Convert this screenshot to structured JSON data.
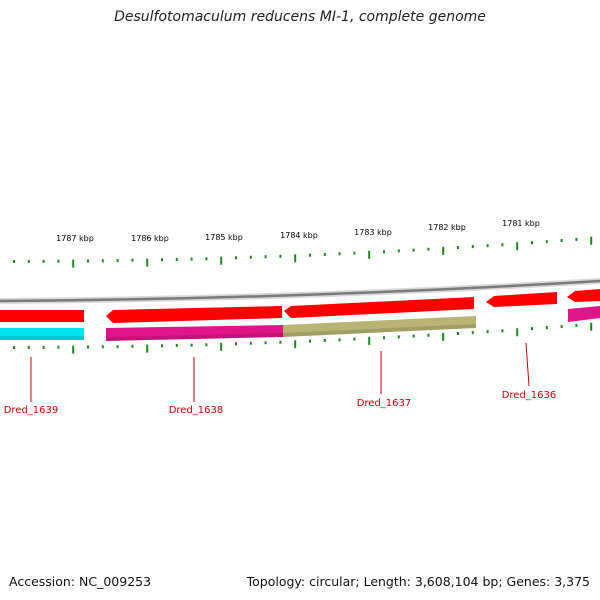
{
  "title": "Desulfotomaculum reducens MI-1, complete genome",
  "footer": {
    "accession": "Accession: NC_009253",
    "summary": "Topology: circular; Length: 3,608,104 bp; Genes: 3,375"
  },
  "scale": {
    "ticks": [
      {
        "kbp": 1787,
        "label": "1787 kbp"
      },
      {
        "kbp": 1786,
        "label": "1786 kbp"
      },
      {
        "kbp": 1785,
        "label": "1785 kbp"
      },
      {
        "kbp": 1784,
        "label": "1784 kbp"
      },
      {
        "kbp": 1783,
        "label": "1783 kbp"
      },
      {
        "kbp": 1782,
        "label": "1782 kbp"
      },
      {
        "kbp": 1781,
        "label": "1781 kbp"
      }
    ]
  },
  "genes": [
    {
      "name": "Dred_1639",
      "color": "#00e5ee"
    },
    {
      "name": "Dred_1638",
      "color": "#e0158a"
    },
    {
      "name": "Dred_1637",
      "color": "#b8b474"
    },
    {
      "name": "Dred_1636",
      "color": "#ff1a1a"
    }
  ],
  "colors": {
    "backbone": "#8a8a8a",
    "forward_cds": "#ff0000",
    "tick": "#1a8a1a",
    "label": "#cc0000"
  }
}
